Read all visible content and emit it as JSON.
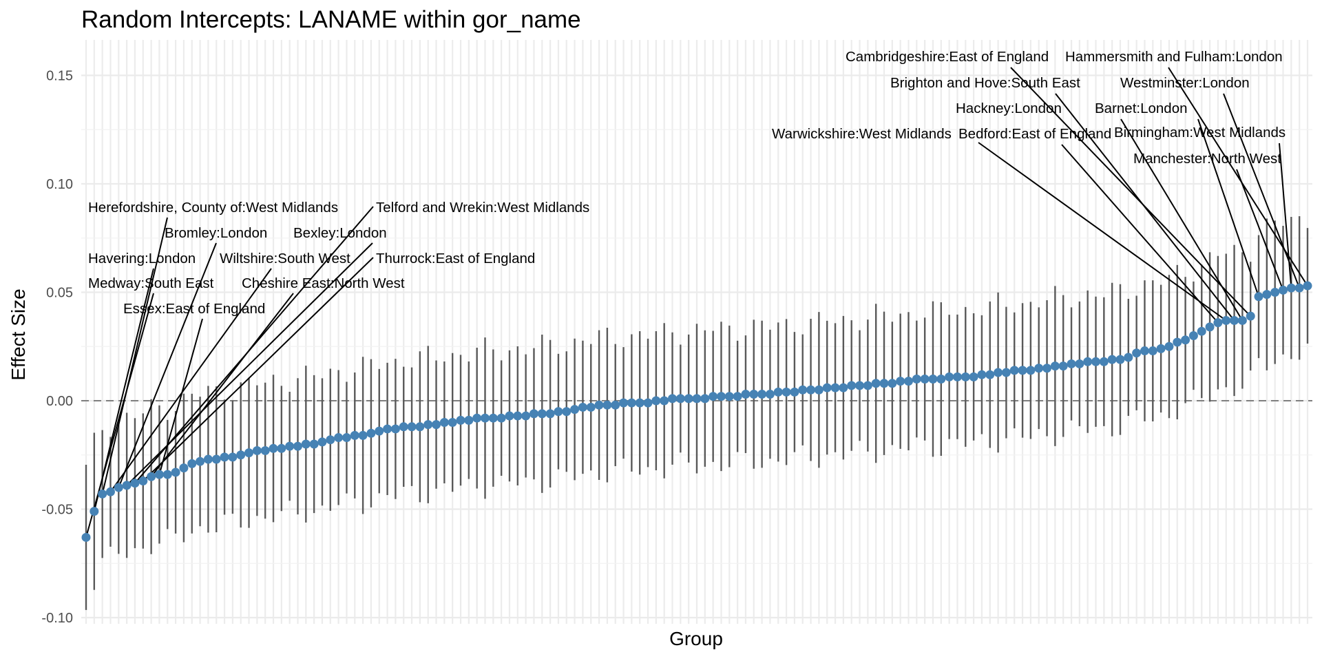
{
  "chart_data": {
    "type": "scatter",
    "subtype": "caterpillar-errorbar",
    "title": "Random Intercepts: LANAME within gor_name",
    "xlabel": "Group",
    "ylabel": "Effect Size",
    "ylim": [
      -0.102,
      0.165
    ],
    "yticks": [
      -0.1,
      -0.05,
      0.0,
      0.05,
      0.1,
      0.15
    ],
    "ytick_labels": [
      "-0.10",
      "-0.05",
      "0.00",
      "0.05",
      "0.10",
      "0.15"
    ],
    "grid": true,
    "reference_line": {
      "y": 0,
      "style": "dashed",
      "color": "#7f7f7f"
    },
    "point_color": "#4682b4",
    "errorbar_color": "#595959",
    "n_groups": 151,
    "effects": [
      -0.063,
      -0.051,
      -0.043,
      -0.042,
      -0.04,
      -0.039,
      -0.038,
      -0.037,
      -0.035,
      -0.034,
      -0.034,
      -0.033,
      -0.031,
      -0.029,
      -0.028,
      -0.027,
      -0.027,
      -0.026,
      -0.026,
      -0.025,
      -0.024,
      -0.023,
      -0.023,
      -0.022,
      -0.022,
      -0.021,
      -0.021,
      -0.02,
      -0.02,
      -0.019,
      -0.018,
      -0.017,
      -0.017,
      -0.016,
      -0.016,
      -0.015,
      -0.014,
      -0.013,
      -0.013,
      -0.012,
      -0.012,
      -0.012,
      -0.011,
      -0.011,
      -0.01,
      -0.01,
      -0.009,
      -0.009,
      -0.008,
      -0.008,
      -0.008,
      -0.008,
      -0.007,
      -0.007,
      -0.007,
      -0.006,
      -0.006,
      -0.006,
      -0.005,
      -0.005,
      -0.004,
      -0.003,
      -0.003,
      -0.002,
      -0.002,
      -0.002,
      -0.001,
      -0.001,
      -0.001,
      -0.001,
      0.0,
      0.0,
      0.001,
      0.001,
      0.001,
      0.001,
      0.001,
      0.002,
      0.002,
      0.002,
      0.002,
      0.003,
      0.003,
      0.003,
      0.003,
      0.004,
      0.004,
      0.004,
      0.005,
      0.005,
      0.005,
      0.006,
      0.006,
      0.006,
      0.007,
      0.007,
      0.007,
      0.008,
      0.008,
      0.008,
      0.009,
      0.009,
      0.01,
      0.01,
      0.01,
      0.01,
      0.011,
      0.011,
      0.011,
      0.011,
      0.012,
      0.012,
      0.013,
      0.013,
      0.014,
      0.014,
      0.014,
      0.015,
      0.015,
      0.016,
      0.016,
      0.017,
      0.017,
      0.018,
      0.018,
      0.018,
      0.019,
      0.019,
      0.02,
      0.022,
      0.023,
      0.023,
      0.024,
      0.025,
      0.027,
      0.028,
      0.03,
      0.032,
      0.034,
      0.036,
      0.037,
      0.037,
      0.037,
      0.039,
      0.048,
      0.049,
      0.05,
      0.051,
      0.052,
      0.052,
      0.053
    ],
    "ci_half_width": 0.031,
    "annotations": [
      {
        "label": "Herefordshire, County of:West Midlands",
        "group_index": 2
      },
      {
        "label": "Telford and Wrekin:West Midlands",
        "group_index": 6
      },
      {
        "label": "Bromley:London",
        "group_index": 4
      },
      {
        "label": "Bexley:London",
        "group_index": 5
      },
      {
        "label": "Havering:London",
        "group_index": 1
      },
      {
        "label": "Wiltshire:South West",
        "group_index": 3
      },
      {
        "label": "Thurrock:East of England",
        "group_index": 7
      },
      {
        "label": "Medway:South East",
        "group_index": 0
      },
      {
        "label": "Cheshire East:North West",
        "group_index": 8
      },
      {
        "label": "Essex:East of England",
        "group_index": 9
      },
      {
        "label": "Cambridgeshire:East of England",
        "group_index": 143
      },
      {
        "label": "Hammersmith and Fulham:London",
        "group_index": 150
      },
      {
        "label": "Brighton and Hove:South East",
        "group_index": 141
      },
      {
        "label": "Westminster:London",
        "group_index": 149
      },
      {
        "label": "Hackney:London",
        "group_index": 142
      },
      {
        "label": "Barnet:London",
        "group_index": 144
      },
      {
        "label": "Warwickshire:West Midlands",
        "group_index": 140
      },
      {
        "label": "Bedford:East of England",
        "group_index": 139
      },
      {
        "label": "Birmingham:West Midlands",
        "group_index": 148
      },
      {
        "label": "Manchester:North West",
        "group_index": 147
      }
    ]
  }
}
